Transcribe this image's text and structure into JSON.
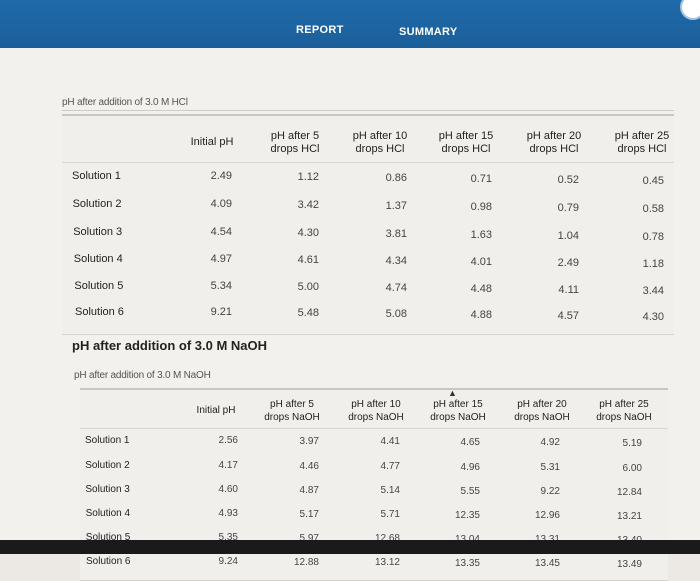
{
  "tabs": {
    "report": "REPORT",
    "summary": "SUMMARY"
  },
  "hcl": {
    "caption": "pH after addition of 3.0 M HCl",
    "headers": [
      "Initial pH",
      "pH after 5\ndrops HCl",
      "pH after 10\ndrops HCl",
      "pH after 15\ndrops HCl",
      "pH after 20\ndrops HCl",
      "pH after 25\ndrops HCl"
    ],
    "rows": [
      {
        "label": "Solution 1",
        "values": [
          "2.49",
          "1.12",
          "0.86",
          "0.71",
          "0.52",
          "0.45"
        ]
      },
      {
        "label": "Solution 2",
        "values": [
          "4.09",
          "3.42",
          "1.37",
          "0.98",
          "0.79",
          "0.58"
        ]
      },
      {
        "label": "Solution 3",
        "values": [
          "4.54",
          "4.30",
          "3.81",
          "1.63",
          "1.04",
          "0.78"
        ]
      },
      {
        "label": "Solution 4",
        "values": [
          "4.97",
          "4.61",
          "4.34",
          "4.01",
          "2.49",
          "1.18"
        ]
      },
      {
        "label": "Solution 5",
        "values": [
          "5.34",
          "5.00",
          "4.74",
          "4.48",
          "4.11",
          "3.44"
        ]
      },
      {
        "label": "Solution 6",
        "values": [
          "9.21",
          "5.48",
          "5.08",
          "4.88",
          "4.57",
          "4.30"
        ]
      }
    ]
  },
  "naoh": {
    "heading": "pH after addition of 3.0 M NaOH",
    "caption": "pH after addition of 3.0 M NaOH",
    "headers": [
      "Initial pH",
      "pH after 5\ndrops NaOH",
      "pH after 10\ndrops NaOH",
      "pH after 15\ndrops NaOH",
      "pH after 20\ndrops NaOH",
      "pH after 25\ndrops NaOH"
    ],
    "rows": [
      {
        "label": "Solution 1",
        "values": [
          "2.56",
          "3.97",
          "4.41",
          "4.65",
          "4.92",
          "5.19"
        ]
      },
      {
        "label": "Solution 2",
        "values": [
          "4.17",
          "4.46",
          "4.77",
          "4.96",
          "5.31",
          "6.00"
        ]
      },
      {
        "label": "Solution 3",
        "values": [
          "4.60",
          "4.87",
          "5.14",
          "5.55",
          "9.22",
          "12.84"
        ]
      },
      {
        "label": "Solution 4",
        "values": [
          "4.93",
          "5.17",
          "5.71",
          "12.35",
          "12.96",
          "13.21"
        ]
      },
      {
        "label": "Solution 5",
        "values": [
          "5.35",
          "5.97",
          "12.68",
          "13.04",
          "13.31",
          "13.40"
        ]
      },
      {
        "label": "Solution 6",
        "values": [
          "9.24",
          "12.88",
          "13.12",
          "13.35",
          "13.45",
          "13.49"
        ]
      }
    ]
  }
}
